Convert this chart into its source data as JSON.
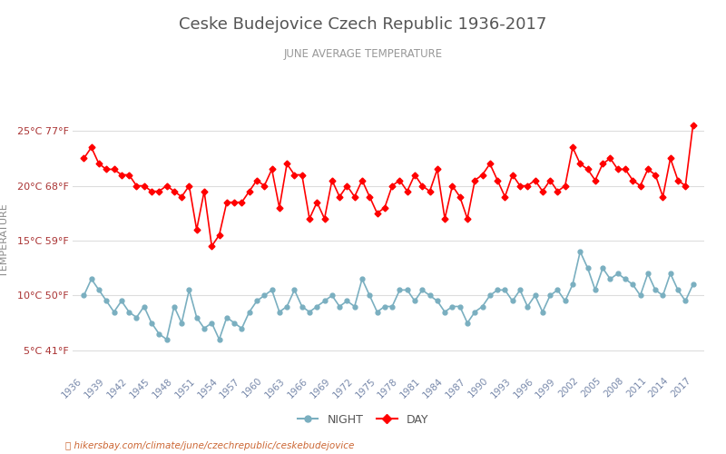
{
  "title": "Ceske Budejovice Czech Republic 1936-2017",
  "subtitle": "JUNE AVERAGE TEMPERATURE",
  "ylabel": "TEMPERATURE",
  "bottom_text": "hikersbay.com/climate/june/czechrepublic/ceskebudejovice",
  "yticks_c": [
    5,
    10,
    15,
    20,
    25
  ],
  "yticks_f": [
    41,
    50,
    59,
    68,
    77
  ],
  "years": [
    1936,
    1937,
    1938,
    1939,
    1940,
    1941,
    1942,
    1943,
    1944,
    1945,
    1946,
    1947,
    1948,
    1949,
    1950,
    1951,
    1952,
    1953,
    1954,
    1955,
    1956,
    1957,
    1958,
    1959,
    1960,
    1961,
    1962,
    1963,
    1964,
    1965,
    1966,
    1967,
    1968,
    1969,
    1970,
    1971,
    1972,
    1973,
    1974,
    1975,
    1976,
    1977,
    1978,
    1979,
    1980,
    1981,
    1982,
    1983,
    1984,
    1985,
    1986,
    1987,
    1988,
    1989,
    1990,
    1991,
    1992,
    1993,
    1994,
    1995,
    1996,
    1997,
    1998,
    1999,
    2000,
    2001,
    2002,
    2003,
    2004,
    2005,
    2006,
    2007,
    2008,
    2009,
    2010,
    2011,
    2012,
    2013,
    2014,
    2015,
    2016,
    2017
  ],
  "day_temps": [
    22.5,
    23.5,
    22.0,
    21.5,
    21.5,
    21.0,
    21.0,
    20.0,
    20.0,
    19.5,
    19.5,
    20.0,
    19.5,
    19.0,
    20.0,
    16.0,
    19.5,
    14.5,
    15.5,
    18.5,
    18.5,
    18.5,
    19.5,
    20.5,
    20.0,
    21.5,
    18.0,
    22.0,
    21.0,
    21.0,
    17.0,
    18.5,
    17.0,
    20.5,
    19.0,
    20.0,
    19.0,
    20.5,
    19.0,
    17.5,
    18.0,
    20.0,
    20.5,
    19.5,
    21.0,
    20.0,
    19.5,
    21.5,
    17.0,
    20.0,
    19.0,
    17.0,
    20.5,
    21.0,
    22.0,
    20.5,
    19.0,
    21.0,
    20.0,
    20.0,
    20.5,
    19.5,
    20.5,
    19.5,
    20.0,
    23.5,
    22.0,
    21.5,
    20.5,
    22.0,
    22.5,
    21.5,
    21.5,
    20.5,
    20.0,
    21.5,
    21.0,
    19.0,
    22.5,
    20.5,
    20.0,
    25.5
  ],
  "night_temps": [
    10.0,
    11.5,
    10.5,
    9.5,
    8.5,
    9.5,
    8.5,
    8.0,
    9.0,
    7.5,
    6.5,
    6.0,
    9.0,
    7.5,
    10.5,
    8.0,
    7.0,
    7.5,
    6.0,
    8.0,
    7.5,
    7.0,
    8.5,
    9.5,
    10.0,
    10.5,
    8.5,
    9.0,
    10.5,
    9.0,
    8.5,
    9.0,
    9.5,
    10.0,
    9.0,
    9.5,
    9.0,
    11.5,
    10.0,
    8.5,
    9.0,
    9.0,
    10.5,
    10.5,
    9.5,
    10.5,
    10.0,
    9.5,
    8.5,
    9.0,
    9.0,
    7.5,
    8.5,
    9.0,
    10.0,
    10.5,
    10.5,
    9.5,
    10.5,
    9.0,
    10.0,
    8.5,
    10.0,
    10.5,
    9.5,
    11.0,
    14.0,
    12.5,
    10.5,
    12.5,
    11.5,
    12.0,
    11.5,
    11.0,
    10.0,
    12.0,
    10.5,
    10.0,
    12.0,
    10.5,
    9.5,
    11.0
  ],
  "day_color": "#ff0000",
  "night_color": "#7aafc0",
  "title_color": "#555555",
  "subtitle_color": "#999999",
  "ylabel_color": "#888888",
  "tick_label_color": "#aa3333",
  "xtick_color": "#7788aa",
  "grid_color": "#dddddd",
  "background_color": "#ffffff",
  "legend_night_color": "#7aafc0",
  "legend_day_color": "#ff0000",
  "legend_text_color": "#555555",
  "bottom_text_color": "#cc6633"
}
